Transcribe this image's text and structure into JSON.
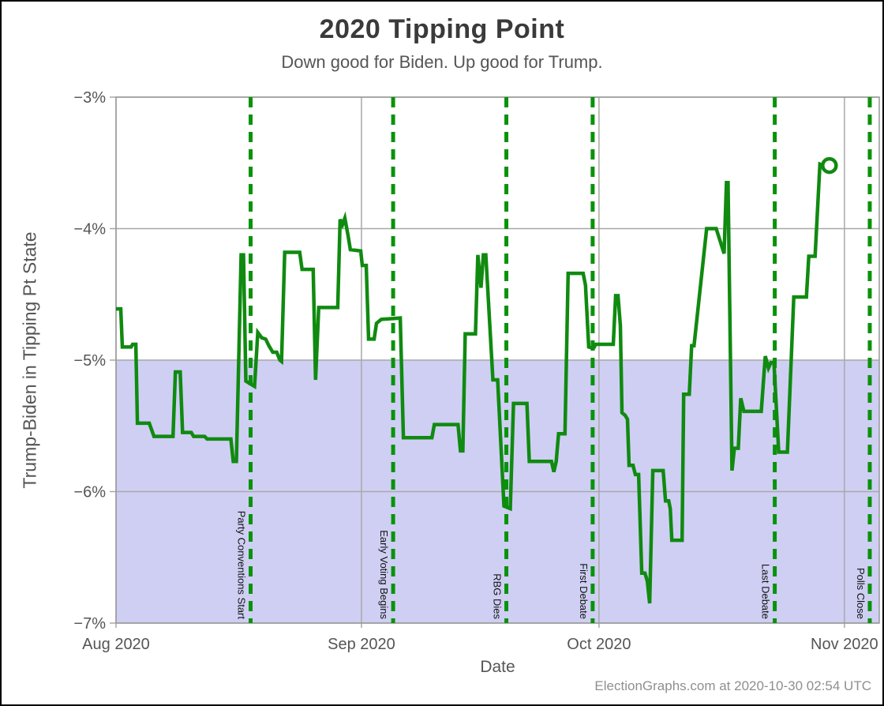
{
  "title": "2020 Tipping Point",
  "subtitle": "Down good for Biden. Up good for Trump.",
  "y_axis": {
    "label": "Trump-Biden in Tipping Pt State"
  },
  "x_axis": {
    "label": "Date"
  },
  "footer": "ElectionGraphs.com at 2020-10-30 02:54 UTC",
  "colors": {
    "line_green": "#108a10",
    "event_green": "#0a920a",
    "shade_blue": "#cfcff4",
    "grid_gray": "#a8a8a8",
    "axis_gray": "#999999",
    "tick_text": "#555555",
    "event_text": "#111111"
  },
  "chart_data": {
    "type": "line",
    "title": "2020 Tipping Point",
    "subtitle": "Down good for Biden. Up good for Trump.",
    "xlabel": "Date",
    "ylabel": "Trump-Biden in Tipping Pt State",
    "x_unit": "days since 2020-08-01",
    "xlim": [
      0,
      96.4
    ],
    "ylim": [
      -7,
      -3
    ],
    "grid": true,
    "y_ticks": [
      {
        "value": -3,
        "label": "−3%"
      },
      {
        "value": -4,
        "label": "−4%"
      },
      {
        "value": -5,
        "label": "−5%"
      },
      {
        "value": -6,
        "label": "−6%"
      },
      {
        "value": -7,
        "label": "−7%"
      }
    ],
    "x_ticks": [
      {
        "day": 0,
        "label": "Aug 2020"
      },
      {
        "day": 31,
        "label": "Sep 2020"
      },
      {
        "day": 61,
        "label": "Oct 2020"
      },
      {
        "day": 92,
        "label": "Nov 2020"
      }
    ],
    "shaded_region": {
      "from": -7,
      "to": -5
    },
    "events": [
      {
        "day": 17.0,
        "label": "Party Conventions Start"
      },
      {
        "day": 35.0,
        "label": "Early Voting Begins"
      },
      {
        "day": 49.3,
        "label": "RBG Dies"
      },
      {
        "day": 60.2,
        "label": "First Debate"
      },
      {
        "day": 83.2,
        "label": "Last Debate"
      },
      {
        "day": 95.2,
        "label": "Polls Close"
      }
    ],
    "series": [
      {
        "name": "Trump-Biden in Tipping Pt State",
        "points": [
          [
            0,
            -4.61
          ],
          [
            0.6,
            -4.61
          ],
          [
            0.8,
            -4.9
          ],
          [
            1.9,
            -4.9
          ],
          [
            2.1,
            -4.88
          ],
          [
            2.5,
            -4.88
          ],
          [
            2.7,
            -5.48
          ],
          [
            4.2,
            -5.48
          ],
          [
            4.5,
            -5.53
          ],
          [
            4.8,
            -5.58
          ],
          [
            7.2,
            -5.58
          ],
          [
            7.5,
            -5.09
          ],
          [
            8.1,
            -5.09
          ],
          [
            8.4,
            -5.55
          ],
          [
            9.5,
            -5.55
          ],
          [
            9.8,
            -5.58
          ],
          [
            11.2,
            -5.58
          ],
          [
            11.5,
            -5.6
          ],
          [
            14.5,
            -5.6
          ],
          [
            14.8,
            -5.77
          ],
          [
            15.2,
            -5.77
          ],
          [
            15.8,
            -4.2
          ],
          [
            16.1,
            -4.2
          ],
          [
            16.4,
            -5.16
          ],
          [
            17.5,
            -5.2
          ],
          [
            17.9,
            -4.79
          ],
          [
            18.4,
            -4.83
          ],
          [
            18.9,
            -4.84
          ],
          [
            19.3,
            -4.89
          ],
          [
            19.8,
            -4.94
          ],
          [
            20.3,
            -4.94
          ],
          [
            20.7,
            -5.0
          ],
          [
            20.9,
            -5.01
          ],
          [
            21.3,
            -4.18
          ],
          [
            23.2,
            -4.18
          ],
          [
            23.5,
            -4.31
          ],
          [
            24.9,
            -4.31
          ],
          [
            25.2,
            -5.15
          ],
          [
            25.6,
            -4.6
          ],
          [
            28.0,
            -4.6
          ],
          [
            28.3,
            -3.93
          ],
          [
            28.6,
            -3.97
          ],
          [
            28.9,
            -3.92
          ],
          [
            29.3,
            -4.05
          ],
          [
            29.6,
            -4.16
          ],
          [
            30.9,
            -4.17
          ],
          [
            31.1,
            -4.28
          ],
          [
            31.6,
            -4.28
          ],
          [
            31.9,
            -4.84
          ],
          [
            32.6,
            -4.84
          ],
          [
            32.9,
            -4.72
          ],
          [
            33.5,
            -4.69
          ],
          [
            35.9,
            -4.68
          ],
          [
            36.3,
            -5.59
          ],
          [
            39.9,
            -5.59
          ],
          [
            40.2,
            -5.49
          ],
          [
            43.2,
            -5.49
          ],
          [
            43.5,
            -5.69
          ],
          [
            43.8,
            -5.69
          ],
          [
            44.1,
            -4.8
          ],
          [
            45.4,
            -4.8
          ],
          [
            45.7,
            -4.2
          ],
          [
            46.1,
            -4.45
          ],
          [
            46.4,
            -4.2
          ],
          [
            46.7,
            -4.2
          ],
          [
            47.6,
            -5.15
          ],
          [
            48.2,
            -5.15
          ],
          [
            49.0,
            -6.11
          ],
          [
            49.8,
            -6.13
          ],
          [
            50.2,
            -5.33
          ],
          [
            51.9,
            -5.33
          ],
          [
            52.2,
            -5.77
          ],
          [
            55.0,
            -5.77
          ],
          [
            55.3,
            -5.85
          ],
          [
            55.6,
            -5.77
          ],
          [
            55.9,
            -5.56
          ],
          [
            56.7,
            -5.56
          ],
          [
            57.1,
            -4.34
          ],
          [
            59.0,
            -4.34
          ],
          [
            59.3,
            -4.43
          ],
          [
            59.7,
            -4.9
          ],
          [
            60.3,
            -4.91
          ],
          [
            60.6,
            -4.88
          ],
          [
            62.8,
            -4.88
          ],
          [
            63.1,
            -4.51
          ],
          [
            63.4,
            -4.51
          ],
          [
            63.7,
            -4.74
          ],
          [
            63.9,
            -5.4
          ],
          [
            64.3,
            -5.42
          ],
          [
            64.6,
            -5.45
          ],
          [
            64.8,
            -5.8
          ],
          [
            65.3,
            -5.8
          ],
          [
            65.6,
            -5.87
          ],
          [
            66.0,
            -5.87
          ],
          [
            66.4,
            -6.62
          ],
          [
            66.8,
            -6.62
          ],
          [
            67.1,
            -6.68
          ],
          [
            67.4,
            -6.85
          ],
          [
            67.8,
            -5.84
          ],
          [
            69.1,
            -5.84
          ],
          [
            69.4,
            -6.07
          ],
          [
            69.8,
            -6.07
          ],
          [
            70.0,
            -6.13
          ],
          [
            70.2,
            -6.37
          ],
          [
            71.5,
            -6.37
          ],
          [
            71.7,
            -5.26
          ],
          [
            72.4,
            -5.26
          ],
          [
            72.7,
            -4.89
          ],
          [
            73.0,
            -4.89
          ],
          [
            74.6,
            -4.0
          ],
          [
            75.8,
            -4.0
          ],
          [
            76.8,
            -4.19
          ],
          [
            77.1,
            -3.65
          ],
          [
            77.3,
            -3.65
          ],
          [
            77.8,
            -5.84
          ],
          [
            78.1,
            -5.67
          ],
          [
            78.6,
            -5.67
          ],
          [
            78.9,
            -5.29
          ],
          [
            79.3,
            -5.39
          ],
          [
            81.5,
            -5.39
          ],
          [
            82.0,
            -4.97
          ],
          [
            82.4,
            -5.06
          ],
          [
            82.7,
            -5.02
          ],
          [
            83.1,
            -5.02
          ],
          [
            83.7,
            -5.7
          ],
          [
            84.8,
            -5.7
          ],
          [
            85.6,
            -4.52
          ],
          [
            87.2,
            -4.52
          ],
          [
            87.5,
            -4.21
          ],
          [
            88.3,
            -4.21
          ],
          [
            88.9,
            -3.51
          ],
          [
            89.3,
            -3.52
          ]
        ]
      }
    ],
    "last_point": {
      "day": 90.1,
      "value": -3.52,
      "marker": "open-circle"
    }
  }
}
